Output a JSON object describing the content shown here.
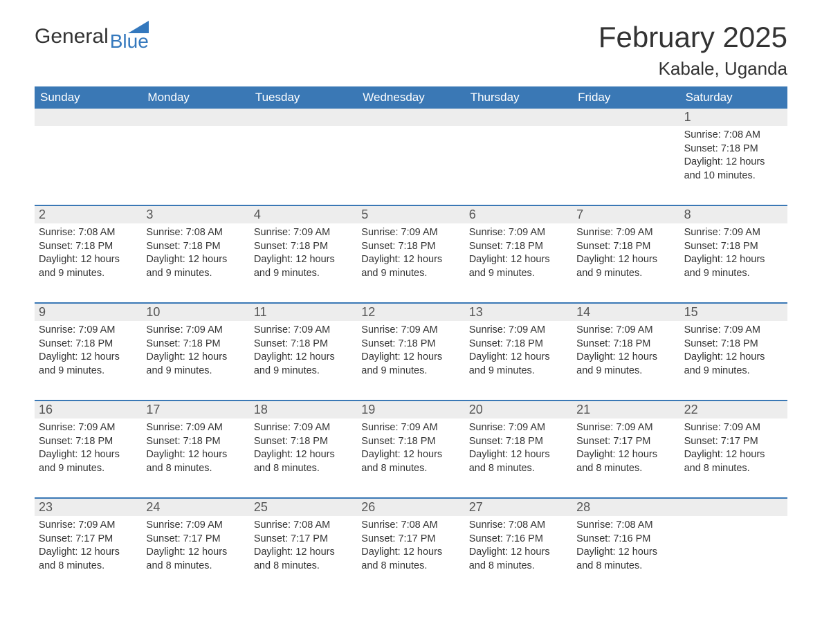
{
  "brand": {
    "general": "General",
    "blue": "Blue"
  },
  "title": "February 2025",
  "location": "Kabale, Uganda",
  "colors": {
    "header_bg": "#3a78b5",
    "header_text": "#ffffff",
    "daynum_bg": "#ededed",
    "text": "#333333",
    "accent": "#3478bd"
  },
  "day_headers": [
    "Sunday",
    "Monday",
    "Tuesday",
    "Wednesday",
    "Thursday",
    "Friday",
    "Saturday"
  ],
  "weeks": [
    [
      {
        "num": "",
        "sunrise": "",
        "sunset": "",
        "daylight": ""
      },
      {
        "num": "",
        "sunrise": "",
        "sunset": "",
        "daylight": ""
      },
      {
        "num": "",
        "sunrise": "",
        "sunset": "",
        "daylight": ""
      },
      {
        "num": "",
        "sunrise": "",
        "sunset": "",
        "daylight": ""
      },
      {
        "num": "",
        "sunrise": "",
        "sunset": "",
        "daylight": ""
      },
      {
        "num": "",
        "sunrise": "",
        "sunset": "",
        "daylight": ""
      },
      {
        "num": "1",
        "sunrise": "Sunrise: 7:08 AM",
        "sunset": "Sunset: 7:18 PM",
        "daylight": "Daylight: 12 hours and 10 minutes."
      }
    ],
    [
      {
        "num": "2",
        "sunrise": "Sunrise: 7:08 AM",
        "sunset": "Sunset: 7:18 PM",
        "daylight": "Daylight: 12 hours and 9 minutes."
      },
      {
        "num": "3",
        "sunrise": "Sunrise: 7:08 AM",
        "sunset": "Sunset: 7:18 PM",
        "daylight": "Daylight: 12 hours and 9 minutes."
      },
      {
        "num": "4",
        "sunrise": "Sunrise: 7:09 AM",
        "sunset": "Sunset: 7:18 PM",
        "daylight": "Daylight: 12 hours and 9 minutes."
      },
      {
        "num": "5",
        "sunrise": "Sunrise: 7:09 AM",
        "sunset": "Sunset: 7:18 PM",
        "daylight": "Daylight: 12 hours and 9 minutes."
      },
      {
        "num": "6",
        "sunrise": "Sunrise: 7:09 AM",
        "sunset": "Sunset: 7:18 PM",
        "daylight": "Daylight: 12 hours and 9 minutes."
      },
      {
        "num": "7",
        "sunrise": "Sunrise: 7:09 AM",
        "sunset": "Sunset: 7:18 PM",
        "daylight": "Daylight: 12 hours and 9 minutes."
      },
      {
        "num": "8",
        "sunrise": "Sunrise: 7:09 AM",
        "sunset": "Sunset: 7:18 PM",
        "daylight": "Daylight: 12 hours and 9 minutes."
      }
    ],
    [
      {
        "num": "9",
        "sunrise": "Sunrise: 7:09 AM",
        "sunset": "Sunset: 7:18 PM",
        "daylight": "Daylight: 12 hours and 9 minutes."
      },
      {
        "num": "10",
        "sunrise": "Sunrise: 7:09 AM",
        "sunset": "Sunset: 7:18 PM",
        "daylight": "Daylight: 12 hours and 9 minutes."
      },
      {
        "num": "11",
        "sunrise": "Sunrise: 7:09 AM",
        "sunset": "Sunset: 7:18 PM",
        "daylight": "Daylight: 12 hours and 9 minutes."
      },
      {
        "num": "12",
        "sunrise": "Sunrise: 7:09 AM",
        "sunset": "Sunset: 7:18 PM",
        "daylight": "Daylight: 12 hours and 9 minutes."
      },
      {
        "num": "13",
        "sunrise": "Sunrise: 7:09 AM",
        "sunset": "Sunset: 7:18 PM",
        "daylight": "Daylight: 12 hours and 9 minutes."
      },
      {
        "num": "14",
        "sunrise": "Sunrise: 7:09 AM",
        "sunset": "Sunset: 7:18 PM",
        "daylight": "Daylight: 12 hours and 9 minutes."
      },
      {
        "num": "15",
        "sunrise": "Sunrise: 7:09 AM",
        "sunset": "Sunset: 7:18 PM",
        "daylight": "Daylight: 12 hours and 9 minutes."
      }
    ],
    [
      {
        "num": "16",
        "sunrise": "Sunrise: 7:09 AM",
        "sunset": "Sunset: 7:18 PM",
        "daylight": "Daylight: 12 hours and 9 minutes."
      },
      {
        "num": "17",
        "sunrise": "Sunrise: 7:09 AM",
        "sunset": "Sunset: 7:18 PM",
        "daylight": "Daylight: 12 hours and 8 minutes."
      },
      {
        "num": "18",
        "sunrise": "Sunrise: 7:09 AM",
        "sunset": "Sunset: 7:18 PM",
        "daylight": "Daylight: 12 hours and 8 minutes."
      },
      {
        "num": "19",
        "sunrise": "Sunrise: 7:09 AM",
        "sunset": "Sunset: 7:18 PM",
        "daylight": "Daylight: 12 hours and 8 minutes."
      },
      {
        "num": "20",
        "sunrise": "Sunrise: 7:09 AM",
        "sunset": "Sunset: 7:18 PM",
        "daylight": "Daylight: 12 hours and 8 minutes."
      },
      {
        "num": "21",
        "sunrise": "Sunrise: 7:09 AM",
        "sunset": "Sunset: 7:17 PM",
        "daylight": "Daylight: 12 hours and 8 minutes."
      },
      {
        "num": "22",
        "sunrise": "Sunrise: 7:09 AM",
        "sunset": "Sunset: 7:17 PM",
        "daylight": "Daylight: 12 hours and 8 minutes."
      }
    ],
    [
      {
        "num": "23",
        "sunrise": "Sunrise: 7:09 AM",
        "sunset": "Sunset: 7:17 PM",
        "daylight": "Daylight: 12 hours and 8 minutes."
      },
      {
        "num": "24",
        "sunrise": "Sunrise: 7:09 AM",
        "sunset": "Sunset: 7:17 PM",
        "daylight": "Daylight: 12 hours and 8 minutes."
      },
      {
        "num": "25",
        "sunrise": "Sunrise: 7:08 AM",
        "sunset": "Sunset: 7:17 PM",
        "daylight": "Daylight: 12 hours and 8 minutes."
      },
      {
        "num": "26",
        "sunrise": "Sunrise: 7:08 AM",
        "sunset": "Sunset: 7:17 PM",
        "daylight": "Daylight: 12 hours and 8 minutes."
      },
      {
        "num": "27",
        "sunrise": "Sunrise: 7:08 AM",
        "sunset": "Sunset: 7:16 PM",
        "daylight": "Daylight: 12 hours and 8 minutes."
      },
      {
        "num": "28",
        "sunrise": "Sunrise: 7:08 AM",
        "sunset": "Sunset: 7:16 PM",
        "daylight": "Daylight: 12 hours and 8 minutes."
      },
      {
        "num": "",
        "sunrise": "",
        "sunset": "",
        "daylight": ""
      }
    ]
  ]
}
